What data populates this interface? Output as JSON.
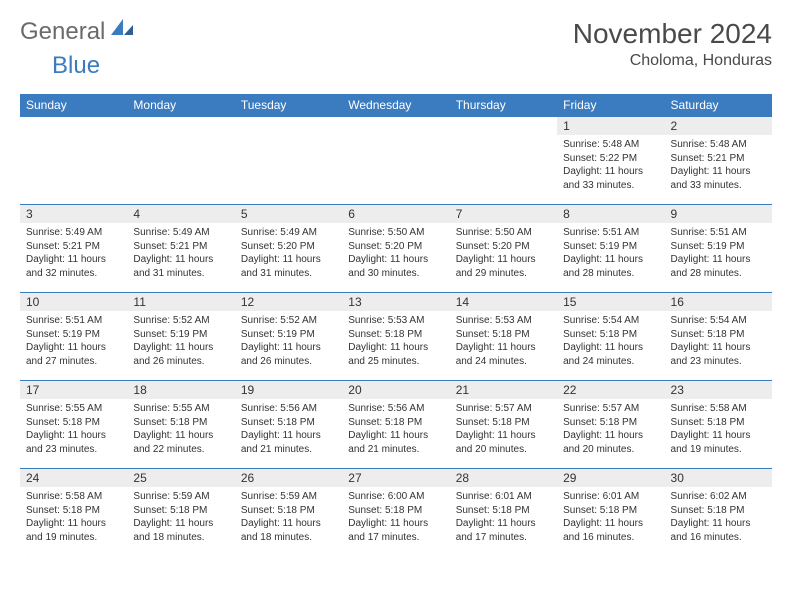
{
  "logo": {
    "text_general": "General",
    "text_blue": "Blue",
    "icon_color": "#3b7bbf"
  },
  "title": "November 2024",
  "location": "Choloma, Honduras",
  "colors": {
    "header_bg": "#3b7bbf",
    "header_text": "#ffffff",
    "daynum_bg": "#ededed",
    "body_text": "#333333",
    "border": "#3b7bbf"
  },
  "weekdays": [
    "Sunday",
    "Monday",
    "Tuesday",
    "Wednesday",
    "Thursday",
    "Friday",
    "Saturday"
  ],
  "weeks": [
    [
      {
        "empty": true
      },
      {
        "empty": true
      },
      {
        "empty": true
      },
      {
        "empty": true
      },
      {
        "empty": true
      },
      {
        "day": "1",
        "sunrise": "Sunrise: 5:48 AM",
        "sunset": "Sunset: 5:22 PM",
        "daylight": "Daylight: 11 hours and 33 minutes."
      },
      {
        "day": "2",
        "sunrise": "Sunrise: 5:48 AM",
        "sunset": "Sunset: 5:21 PM",
        "daylight": "Daylight: 11 hours and 33 minutes."
      }
    ],
    [
      {
        "day": "3",
        "sunrise": "Sunrise: 5:49 AM",
        "sunset": "Sunset: 5:21 PM",
        "daylight": "Daylight: 11 hours and 32 minutes."
      },
      {
        "day": "4",
        "sunrise": "Sunrise: 5:49 AM",
        "sunset": "Sunset: 5:21 PM",
        "daylight": "Daylight: 11 hours and 31 minutes."
      },
      {
        "day": "5",
        "sunrise": "Sunrise: 5:49 AM",
        "sunset": "Sunset: 5:20 PM",
        "daylight": "Daylight: 11 hours and 31 minutes."
      },
      {
        "day": "6",
        "sunrise": "Sunrise: 5:50 AM",
        "sunset": "Sunset: 5:20 PM",
        "daylight": "Daylight: 11 hours and 30 minutes."
      },
      {
        "day": "7",
        "sunrise": "Sunrise: 5:50 AM",
        "sunset": "Sunset: 5:20 PM",
        "daylight": "Daylight: 11 hours and 29 minutes."
      },
      {
        "day": "8",
        "sunrise": "Sunrise: 5:51 AM",
        "sunset": "Sunset: 5:19 PM",
        "daylight": "Daylight: 11 hours and 28 minutes."
      },
      {
        "day": "9",
        "sunrise": "Sunrise: 5:51 AM",
        "sunset": "Sunset: 5:19 PM",
        "daylight": "Daylight: 11 hours and 28 minutes."
      }
    ],
    [
      {
        "day": "10",
        "sunrise": "Sunrise: 5:51 AM",
        "sunset": "Sunset: 5:19 PM",
        "daylight": "Daylight: 11 hours and 27 minutes."
      },
      {
        "day": "11",
        "sunrise": "Sunrise: 5:52 AM",
        "sunset": "Sunset: 5:19 PM",
        "daylight": "Daylight: 11 hours and 26 minutes."
      },
      {
        "day": "12",
        "sunrise": "Sunrise: 5:52 AM",
        "sunset": "Sunset: 5:19 PM",
        "daylight": "Daylight: 11 hours and 26 minutes."
      },
      {
        "day": "13",
        "sunrise": "Sunrise: 5:53 AM",
        "sunset": "Sunset: 5:18 PM",
        "daylight": "Daylight: 11 hours and 25 minutes."
      },
      {
        "day": "14",
        "sunrise": "Sunrise: 5:53 AM",
        "sunset": "Sunset: 5:18 PM",
        "daylight": "Daylight: 11 hours and 24 minutes."
      },
      {
        "day": "15",
        "sunrise": "Sunrise: 5:54 AM",
        "sunset": "Sunset: 5:18 PM",
        "daylight": "Daylight: 11 hours and 24 minutes."
      },
      {
        "day": "16",
        "sunrise": "Sunrise: 5:54 AM",
        "sunset": "Sunset: 5:18 PM",
        "daylight": "Daylight: 11 hours and 23 minutes."
      }
    ],
    [
      {
        "day": "17",
        "sunrise": "Sunrise: 5:55 AM",
        "sunset": "Sunset: 5:18 PM",
        "daylight": "Daylight: 11 hours and 23 minutes."
      },
      {
        "day": "18",
        "sunrise": "Sunrise: 5:55 AM",
        "sunset": "Sunset: 5:18 PM",
        "daylight": "Daylight: 11 hours and 22 minutes."
      },
      {
        "day": "19",
        "sunrise": "Sunrise: 5:56 AM",
        "sunset": "Sunset: 5:18 PM",
        "daylight": "Daylight: 11 hours and 21 minutes."
      },
      {
        "day": "20",
        "sunrise": "Sunrise: 5:56 AM",
        "sunset": "Sunset: 5:18 PM",
        "daylight": "Daylight: 11 hours and 21 minutes."
      },
      {
        "day": "21",
        "sunrise": "Sunrise: 5:57 AM",
        "sunset": "Sunset: 5:18 PM",
        "daylight": "Daylight: 11 hours and 20 minutes."
      },
      {
        "day": "22",
        "sunrise": "Sunrise: 5:57 AM",
        "sunset": "Sunset: 5:18 PM",
        "daylight": "Daylight: 11 hours and 20 minutes."
      },
      {
        "day": "23",
        "sunrise": "Sunrise: 5:58 AM",
        "sunset": "Sunset: 5:18 PM",
        "daylight": "Daylight: 11 hours and 19 minutes."
      }
    ],
    [
      {
        "day": "24",
        "sunrise": "Sunrise: 5:58 AM",
        "sunset": "Sunset: 5:18 PM",
        "daylight": "Daylight: 11 hours and 19 minutes."
      },
      {
        "day": "25",
        "sunrise": "Sunrise: 5:59 AM",
        "sunset": "Sunset: 5:18 PM",
        "daylight": "Daylight: 11 hours and 18 minutes."
      },
      {
        "day": "26",
        "sunrise": "Sunrise: 5:59 AM",
        "sunset": "Sunset: 5:18 PM",
        "daylight": "Daylight: 11 hours and 18 minutes."
      },
      {
        "day": "27",
        "sunrise": "Sunrise: 6:00 AM",
        "sunset": "Sunset: 5:18 PM",
        "daylight": "Daylight: 11 hours and 17 minutes."
      },
      {
        "day": "28",
        "sunrise": "Sunrise: 6:01 AM",
        "sunset": "Sunset: 5:18 PM",
        "daylight": "Daylight: 11 hours and 17 minutes."
      },
      {
        "day": "29",
        "sunrise": "Sunrise: 6:01 AM",
        "sunset": "Sunset: 5:18 PM",
        "daylight": "Daylight: 11 hours and 16 minutes."
      },
      {
        "day": "30",
        "sunrise": "Sunrise: 6:02 AM",
        "sunset": "Sunset: 5:18 PM",
        "daylight": "Daylight: 11 hours and 16 minutes."
      }
    ]
  ]
}
